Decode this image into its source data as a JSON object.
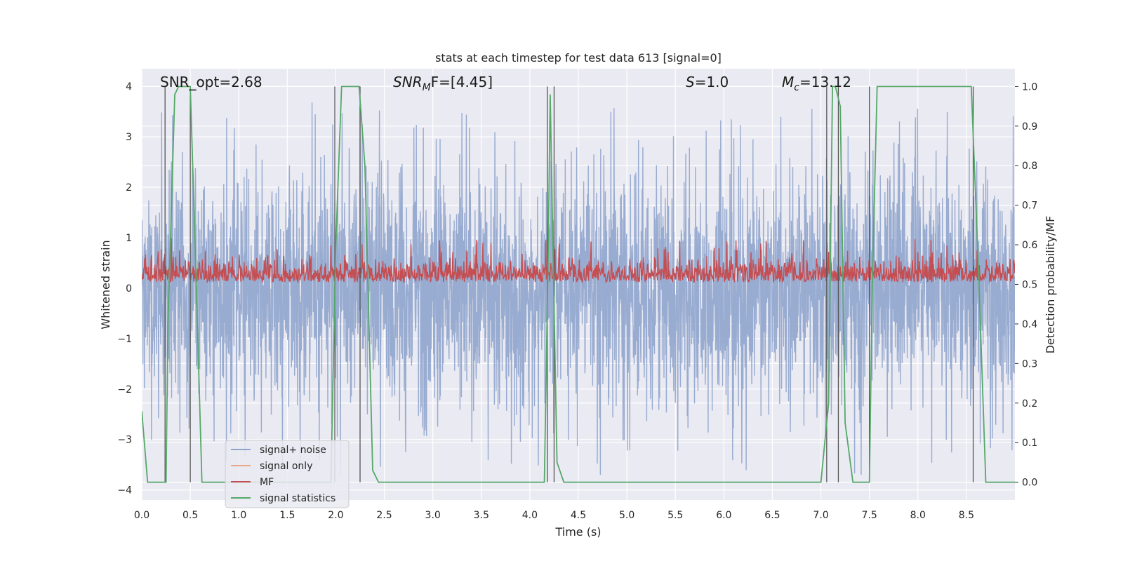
{
  "chart_data": {
    "type": "line",
    "title": "stats at each timestep for test data 613 [signal=0]",
    "xlabel": "Time (s)",
    "ylabel_left": "Whitened strain",
    "ylabel_right": "Detection probability/MF",
    "xlim": [
      0.0,
      9.0
    ],
    "ylim_left": [
      -4.2,
      4.35
    ],
    "ylim_right": [
      -0.045,
      1.045
    ],
    "x_ticks": [
      0.0,
      0.5,
      1.0,
      1.5,
      2.0,
      2.5,
      3.0,
      3.5,
      4.0,
      4.5,
      5.0,
      5.5,
      6.0,
      6.5,
      7.0,
      7.5,
      8.0,
      8.5
    ],
    "x_tick_labels": [
      "0.0",
      "0.5",
      "1.0",
      "1.5",
      "2.0",
      "2.5",
      "3.0",
      "3.5",
      "4.0",
      "4.5",
      "5.0",
      "5.5",
      "6.0",
      "6.5",
      "7.0",
      "7.5",
      "8.0",
      "8.5"
    ],
    "y_left_ticks": [
      -4,
      -3,
      -2,
      -1,
      0,
      1,
      2,
      3,
      4
    ],
    "y_left_tick_labels": [
      "−4",
      "−3",
      "−2",
      "−1",
      "0",
      "1",
      "2",
      "3",
      "4"
    ],
    "y_right_ticks": [
      0.0,
      0.1,
      0.2,
      0.3,
      0.4,
      0.5,
      0.6,
      0.7,
      0.8,
      0.9,
      1.0
    ],
    "y_right_tick_labels": [
      "0.0",
      "0.1",
      "0.2",
      "0.3",
      "0.4",
      "0.5",
      "0.6",
      "0.7",
      "0.8",
      "0.9",
      "1.0"
    ],
    "grid": true,
    "legend_position": "lower-left",
    "annotations": {
      "snr_opt": "SNR_opt=2.68",
      "snr_mf_prefix": "SNR",
      "snr_mf_sub": "M",
      "snr_mf_suffix": "F=[4.45]",
      "s_var": "S",
      "s_value": "=1.0",
      "mc_var": "M",
      "mc_sub": "c",
      "mc_value": "=13.12"
    },
    "series": [
      {
        "name": "signal+ noise",
        "color": "#8fa4cc",
        "axis": "left",
        "description_values": {
          "typical_range": [
            -2.5,
            2.8
          ],
          "extreme_min": -3.7,
          "extreme_max": 3.9
        }
      },
      {
        "name": "signal only",
        "color": "#e8a88a",
        "axis": "left",
        "values": []
      },
      {
        "name": "MF",
        "color": "#c44e52",
        "axis": "left",
        "description_values": {
          "typical_range": [
            0.05,
            0.75
          ],
          "extreme_max": 1.0
        }
      },
      {
        "name": "signal statistics",
        "color": "#55a868",
        "axis": "right",
        "x": [
          0.0,
          0.06,
          0.25,
          0.27,
          0.34,
          0.38,
          0.42,
          0.5,
          0.55,
          0.62,
          1.95,
          2.0,
          2.06,
          2.24,
          2.3,
          2.38,
          2.44,
          4.15,
          4.19,
          4.21,
          4.23,
          4.28,
          4.35,
          7.0,
          7.08,
          7.12,
          7.15,
          7.2,
          7.25,
          7.33,
          7.5,
          7.53,
          7.58,
          8.55,
          8.63,
          8.7,
          9.0
        ],
        "values": [
          0.18,
          0.0,
          0.0,
          0.4,
          0.98,
          1.0,
          1.0,
          1.0,
          0.6,
          0.0,
          0.0,
          0.6,
          1.0,
          1.0,
          0.8,
          0.03,
          0.0,
          0.0,
          0.6,
          0.98,
          0.7,
          0.05,
          0.0,
          0.0,
          0.2,
          1.0,
          1.0,
          0.95,
          0.15,
          0.0,
          0.0,
          0.5,
          1.0,
          1.0,
          0.5,
          0.0,
          0.0
        ]
      }
    ],
    "vertical_markers_x": [
      0.24,
      0.5,
      1.99,
      2.25,
      4.18,
      4.25,
      7.06,
      7.18,
      7.5,
      8.57
    ],
    "vertical_markers_color": "#555555"
  }
}
